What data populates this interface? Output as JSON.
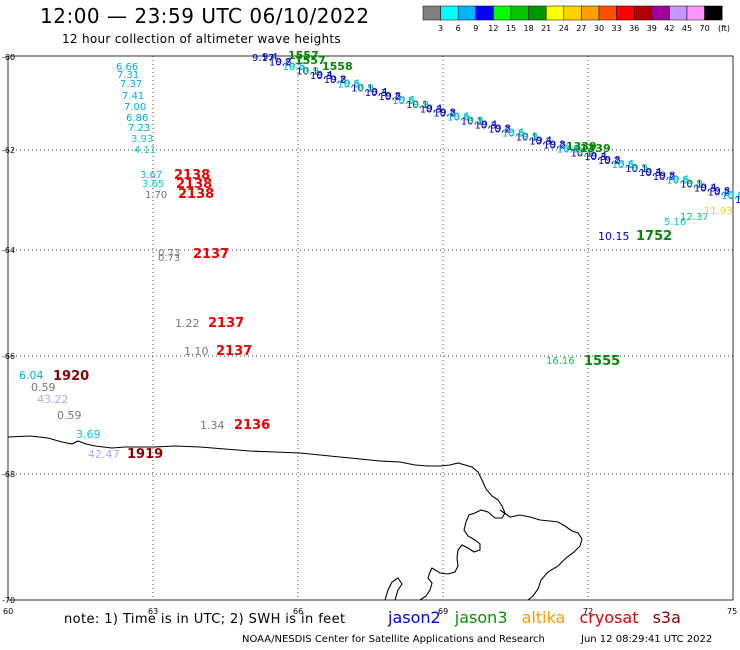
{
  "title": "12:00 — 23:59 UTC 06/10/2022",
  "subtitle": "12 hour collection of altimeter wave heights",
  "colorbar": {
    "unit": "(ft)",
    "labels": [
      "3",
      "6",
      "9",
      "12",
      "15",
      "18",
      "21",
      "24",
      "27",
      "30",
      "33",
      "36",
      "39",
      "42",
      "45",
      "70"
    ],
    "colors": [
      "#808080",
      "#00ffff",
      "#00b4ff",
      "#0000ff",
      "#00ff00",
      "#00c800",
      "#009600",
      "#ffff00",
      "#ffd200",
      "#ffa000",
      "#ff5000",
      "#ff0000",
      "#b40000",
      "#a000a0",
      "#c896ff",
      "#ff96ff",
      "#000000"
    ]
  },
  "axes": {
    "x_ticks": [
      "60",
      "63",
      "66",
      "69",
      "72",
      "75"
    ],
    "y_ticks": [
      "-60",
      "-62",
      "-64",
      "-66",
      "-68",
      "-70"
    ]
  },
  "labels": [
    {
      "t": "9.17",
      "c": "#0000cc"
    },
    {
      "t": "1557",
      "c": "#008800"
    },
    {
      "t": "1557",
      "c": "#008800"
    },
    {
      "t": "1558",
      "c": "#008800"
    },
    {
      "t": "6.66",
      "c": "#00aadd"
    },
    {
      "t": "7.31",
      "c": "#00aadd"
    },
    {
      "t": "7.37",
      "c": "#00aadd"
    },
    {
      "t": "7.41",
      "c": "#00aadd"
    },
    {
      "t": "7.00",
      "c": "#00aadd"
    },
    {
      "t": "6.86",
      "c": "#00aadd"
    },
    {
      "t": "7.23",
      "c": "#00aadd"
    },
    {
      "t": "3.93",
      "c": "#00cccc"
    },
    {
      "t": "4.11",
      "c": "#00cccc"
    },
    {
      "t": "3.67",
      "c": "#00cccc"
    },
    {
      "t": "3.65",
      "c": "#00cccc"
    },
    {
      "t": "1.70",
      "c": "#777777"
    },
    {
      "t": "2138",
      "c": "#ee0000"
    },
    {
      "t": "2138",
      "c": "#ee0000"
    },
    {
      "t": "2138",
      "c": "#ee0000"
    },
    {
      "t": "0.73",
      "c": "#777777"
    },
    {
      "t": "0.73",
      "c": "#777777"
    },
    {
      "t": "2137",
      "c": "#ee0000"
    },
    {
      "t": "1.22",
      "c": "#777777"
    },
    {
      "t": "2137",
      "c": "#ee0000"
    },
    {
      "t": "1.10",
      "c": "#777777"
    },
    {
      "t": "2137",
      "c": "#ee0000"
    },
    {
      "t": "1.34",
      "c": "#777777"
    },
    {
      "t": "2136",
      "c": "#ee0000"
    },
    {
      "t": "6.04",
      "c": "#00aadd"
    },
    {
      "t": "1920",
      "c": "#8b0000"
    },
    {
      "t": "0.59",
      "c": "#777777"
    },
    {
      "t": "43.22",
      "c": "#aaaaee"
    },
    {
      "t": "0.59",
      "c": "#777777"
    },
    {
      "t": "3.69",
      "c": "#00cccc"
    },
    {
      "t": "42.47",
      "c": "#aaaaee"
    },
    {
      "t": "1919",
      "c": "#8b0000"
    },
    {
      "t": "1339",
      "c": "#008800"
    },
    {
      "t": "1339",
      "c": "#008800"
    },
    {
      "t": "10.15",
      "c": "#0000cc"
    },
    {
      "t": "1752",
      "c": "#008800"
    },
    {
      "t": "5.16",
      "c": "#00cccc"
    },
    {
      "t": "12.37",
      "c": "#00cc66"
    },
    {
      "t": "11.93",
      "c": "#dddd00"
    },
    {
      "t": "1555",
      "c": "#008800"
    },
    {
      "t": "16.16",
      "c": "#00cc66"
    }
  ],
  "note": "note: 1) Time is in UTC; 2) SWH is in feet",
  "legend": [
    {
      "name": "jason2",
      "color": "#0000ff"
    },
    {
      "name": "jason3",
      "color": "#009600"
    },
    {
      "name": "altika",
      "color": "#ff9900"
    },
    {
      "name": "cryosat",
      "color": "#dd0000"
    },
    {
      "name": "s3a",
      "color": "#8b0000"
    }
  ],
  "footer_left": "NOAA/NESDIS Center for Satellite Applications and Research",
  "footer_right": "Jun 12 08:29:41 UTC 2022"
}
